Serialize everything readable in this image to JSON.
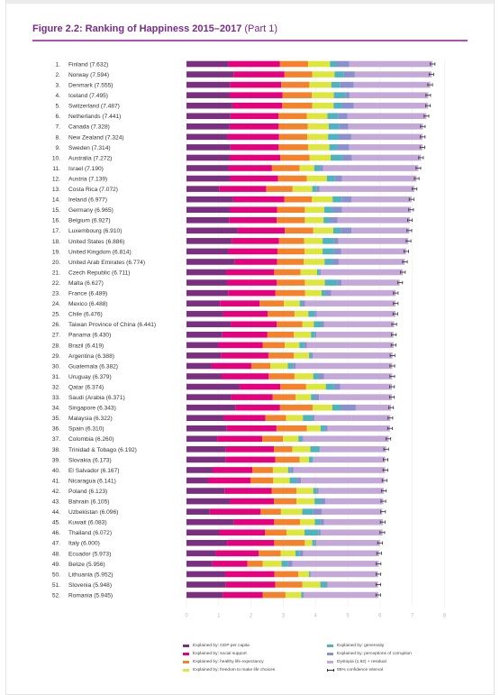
{
  "figure": {
    "title_bold": "Figure 2.2: Ranking of Happiness 2015–2017",
    "title_part": "(Part 1)"
  },
  "colors": {
    "gdp": "#7b2f80",
    "social": "#e6007e",
    "health": "#f5822a",
    "freedom": "#dde63a",
    "generosity": "#4fb3bf",
    "corruption": "#8b8fce",
    "dystopia": "#c4a8d8",
    "ci": "#333333"
  },
  "legend": [
    {
      "key": "gdp",
      "label": "Explained by: GDP per capita"
    },
    {
      "key": "social",
      "label": "Explained by: social support"
    },
    {
      "key": "health",
      "label": "Explained by: healthy life expectancy"
    },
    {
      "key": "freedom",
      "label": "Explained by: freedom to make life choices"
    },
    {
      "key": "generosity",
      "label": "Explained by: generosity"
    },
    {
      "key": "corruption",
      "label": "Explained by: perceptions of corruption"
    },
    {
      "key": "dystopia",
      "label": "Dystopia (1.92) + residual"
    },
    {
      "key": "ci",
      "label": "95% confidence interval"
    }
  ],
  "chart_data": {
    "type": "bar",
    "orientation": "horizontal",
    "stacked": true,
    "xlim": [
      0,
      8
    ],
    "x_ticks": [
      "0",
      "1",
      "2",
      "3",
      "4",
      "5",
      "6",
      "7",
      "8"
    ],
    "series_names": [
      "GDP per capita",
      "social support",
      "healthy life expectancy",
      "freedom to make life choices",
      "generosity",
      "perceptions of corruption",
      "Dystopia (1.92) + residual"
    ],
    "rows": [
      {
        "rank": "1.",
        "label": "Finland (7.632)",
        "score": 7.632,
        "parts": [
          1.31,
          1.59,
          0.87,
          0.68,
          0.2,
          0.39,
          2.59
        ]
      },
      {
        "rank": "2.",
        "label": "Norway (7.594)",
        "score": 7.594,
        "parts": [
          1.46,
          1.58,
          0.86,
          0.69,
          0.29,
          0.34,
          2.38
        ]
      },
      {
        "rank": "3.",
        "label": "Denmark (7.555)",
        "score": 7.555,
        "parts": [
          1.35,
          1.59,
          0.87,
          0.68,
          0.28,
          0.41,
          2.38
        ]
      },
      {
        "rank": "4.",
        "label": "Iceland (7.495)",
        "score": 7.495,
        "parts": [
          1.34,
          1.64,
          0.91,
          0.68,
          0.35,
          0.14,
          2.44
        ]
      },
      {
        "rank": "5.",
        "label": "Switzerland (7.487)",
        "score": 7.487,
        "parts": [
          1.42,
          1.55,
          0.93,
          0.66,
          0.26,
          0.36,
          2.31
        ]
      },
      {
        "rank": "6.",
        "label": "Netherlands (7.441)",
        "score": 7.441,
        "parts": [
          1.36,
          1.49,
          0.88,
          0.64,
          0.33,
          0.29,
          2.45
        ]
      },
      {
        "rank": "7.",
        "label": "Canada (7.328)",
        "score": 7.328,
        "parts": [
          1.33,
          1.53,
          0.9,
          0.65,
          0.32,
          0.29,
          2.31
        ]
      },
      {
        "rank": "8.",
        "label": "New Zealand (7.324)",
        "score": 7.324,
        "parts": [
          1.27,
          1.6,
          0.88,
          0.64,
          0.33,
          0.39,
          2.21
        ]
      },
      {
        "rank": "9.",
        "label": "Sweden (7.314)",
        "score": 7.314,
        "parts": [
          1.36,
          1.5,
          0.91,
          0.66,
          0.25,
          0.36,
          2.28
        ]
      },
      {
        "rank": "10.",
        "label": "Australia (7.272)",
        "score": 7.272,
        "parts": [
          1.34,
          1.57,
          0.91,
          0.65,
          0.36,
          0.3,
          2.14
        ]
      },
      {
        "rank": "11.",
        "label": "Israel (7.190)",
        "score": 7.19,
        "parts": [
          1.3,
          1.35,
          0.86,
          0.45,
          0.19,
          0.08,
          2.96
        ]
      },
      {
        "rank": "12.",
        "label": "Austria (7.139)",
        "score": 7.139,
        "parts": [
          1.34,
          1.5,
          0.89,
          0.62,
          0.24,
          0.23,
          2.31
        ]
      },
      {
        "rank": "13.",
        "label": "Costa Rica (7.072)",
        "score": 7.072,
        "parts": [
          1.01,
          1.46,
          0.82,
          0.61,
          0.14,
          0.08,
          2.95
        ]
      },
      {
        "rank": "14.",
        "label": "Ireland (6.977)",
        "score": 6.977,
        "parts": [
          1.45,
          1.58,
          0.86,
          0.64,
          0.28,
          0.31,
          1.86
        ]
      },
      {
        "rank": "15.",
        "label": "Germany (6.965)",
        "score": 6.965,
        "parts": [
          1.34,
          1.47,
          0.86,
          0.6,
          0.27,
          0.28,
          2.14
        ]
      },
      {
        "rank": "16.",
        "label": "Belgium (6.927)",
        "score": 6.927,
        "parts": [
          1.32,
          1.48,
          0.87,
          0.58,
          0.19,
          0.24,
          2.25
        ]
      },
      {
        "rank": "17.",
        "label": "Luxembourg (6.910)",
        "score": 6.91,
        "parts": [
          1.58,
          1.47,
          0.88,
          0.62,
          0.23,
          0.34,
          1.79
        ]
      },
      {
        "rank": "18.",
        "label": "United States (6.886)",
        "score": 6.886,
        "parts": [
          1.4,
          1.47,
          0.78,
          0.57,
          0.34,
          0.15,
          2.17
        ]
      },
      {
        "rank": "19.",
        "label": "United Kingdom (6.814)",
        "score": 6.814,
        "parts": [
          1.3,
          1.52,
          0.84,
          0.56,
          0.35,
          0.23,
          2.01
        ]
      },
      {
        "rank": "20.",
        "label": "United Arab Emirates (6.774)",
        "score": 6.774,
        "parts": [
          1.5,
          1.31,
          0.83,
          0.64,
          0.26,
          0.18,
          2.05
        ]
      },
      {
        "rank": "21.",
        "label": "Czech Republic (6.711)",
        "score": 6.711,
        "parts": [
          1.23,
          1.49,
          0.82,
          0.51,
          0.08,
          0.04,
          2.54
        ]
      },
      {
        "rank": "22.",
        "label": "Malta (6.627)",
        "score": 6.627,
        "parts": [
          1.27,
          1.53,
          0.87,
          0.62,
          0.38,
          0.14,
          1.8
        ]
      },
      {
        "rank": "23.",
        "label": "France (6.489)",
        "score": 6.489,
        "parts": [
          1.29,
          1.47,
          0.92,
          0.51,
          0.11,
          0.19,
          2.0
        ]
      },
      {
        "rank": "24.",
        "label": "Mexico (6.488)",
        "score": 6.488,
        "parts": [
          1.04,
          1.23,
          0.75,
          0.49,
          0.08,
          0.09,
          2.8
        ]
      },
      {
        "rank": "25.",
        "label": "Chile (6.476)",
        "score": 6.476,
        "parts": [
          1.13,
          1.39,
          0.83,
          0.43,
          0.19,
          0.07,
          2.44
        ]
      },
      {
        "rank": "26.",
        "label": "Taiwan Province of China (6.441)",
        "score": 6.441,
        "parts": [
          1.37,
          1.43,
          0.79,
          0.36,
          0.24,
          0.07,
          2.18
        ]
      },
      {
        "rank": "27.",
        "label": "Panama (6.430)",
        "score": 6.43,
        "parts": [
          1.11,
          1.4,
          0.82,
          0.53,
          0.13,
          0.04,
          2.39
        ]
      },
      {
        "rank": "28.",
        "label": "Brazil (6.419)",
        "score": 6.419,
        "parts": [
          0.99,
          1.37,
          0.69,
          0.45,
          0.15,
          0.08,
          2.69
        ]
      },
      {
        "rank": "29.",
        "label": "Argentina (6.388)",
        "score": 6.388,
        "parts": [
          1.07,
          1.47,
          0.79,
          0.47,
          0.07,
          0.05,
          2.47
        ]
      },
      {
        "rank": "30.",
        "label": "Guatemala (6.382)",
        "score": 6.382,
        "parts": [
          0.78,
          1.23,
          0.59,
          0.54,
          0.16,
          0.09,
          2.99
        ]
      },
      {
        "rank": "31.",
        "label": "Uruguay (6.379)",
        "score": 6.379,
        "parts": [
          1.09,
          1.46,
          0.8,
          0.58,
          0.16,
          0.17,
          2.12
        ]
      },
      {
        "rank": "32.",
        "label": "Qatar (6.374)",
        "score": 6.374,
        "parts": [
          1.65,
          1.26,
          0.8,
          0.61,
          0.25,
          0.2,
          1.6
        ]
      },
      {
        "rank": "33.",
        "label": "Saudi (Arabia (6.371)",
        "score": 6.371,
        "parts": [
          1.38,
          1.29,
          0.71,
          0.48,
          0.12,
          0.13,
          2.26
        ]
      },
      {
        "rank": "34.",
        "label": "Singapore (6.343)",
        "score": 6.343,
        "parts": [
          1.53,
          1.37,
          1.01,
          0.61,
          0.27,
          0.46,
          1.09
        ]
      },
      {
        "rank": "35.",
        "label": "Malaysia (6.322)",
        "score": 6.322,
        "parts": [
          1.16,
          1.29,
          0.64,
          0.52,
          0.3,
          0.06,
          2.35
        ]
      },
      {
        "rank": "36.",
        "label": "Spain (6.310)",
        "score": 6.31,
        "parts": [
          1.25,
          1.54,
          0.94,
          0.43,
          0.14,
          0.07,
          1.94
        ]
      },
      {
        "rank": "37.",
        "label": "Colombia (6.260)",
        "score": 6.26,
        "parts": [
          0.96,
          1.39,
          0.64,
          0.48,
          0.11,
          0.04,
          2.65
        ]
      },
      {
        "rank": "38.",
        "label": "Trinidad & Tobago (6.192)",
        "score": 6.192,
        "parts": [
          1.22,
          1.49,
          0.57,
          0.56,
          0.28,
          0.01,
          2.06
        ]
      },
      {
        "rank": "39.",
        "label": "Slovakia (6.173)",
        "score": 6.173,
        "parts": [
          1.21,
          1.54,
          0.76,
          0.29,
          0.12,
          0.01,
          2.23
        ]
      },
      {
        "rank": "40.",
        "label": "El Salvador (6.167)",
        "score": 6.167,
        "parts": [
          0.81,
          1.23,
          0.64,
          0.47,
          0.07,
          0.1,
          2.84
        ]
      },
      {
        "rank": "41.",
        "label": "Nicaragua (6.141)",
        "score": 6.141,
        "parts": [
          0.67,
          1.32,
          0.7,
          0.51,
          0.21,
          0.14,
          2.58
        ]
      },
      {
        "rank": "42.",
        "label": "Poland (6.123)",
        "score": 6.123,
        "parts": [
          1.18,
          1.46,
          0.77,
          0.52,
          0.11,
          0.06,
          2.02
        ]
      },
      {
        "rank": "43.",
        "label": "Bahrain (6.105)",
        "score": 6.105,
        "parts": [
          1.34,
          1.37,
          0.7,
          0.56,
          0.22,
          0.12,
          1.79
        ]
      },
      {
        "rank": "44.",
        "label": "Uzbekistan (6.096)",
        "score": 6.096,
        "parts": [
          0.72,
          1.58,
          0.63,
          0.66,
          0.34,
          0.26,
          1.88
        ]
      },
      {
        "rank": "45.",
        "label": "Kuwait (6.083)",
        "score": 6.083,
        "parts": [
          1.47,
          1.25,
          0.8,
          0.46,
          0.17,
          0.12,
          1.82
        ]
      },
      {
        "rank": "46.",
        "label": "Thailand (6.072)",
        "score": 6.072,
        "parts": [
          1.02,
          1.42,
          0.66,
          0.56,
          0.44,
          0.06,
          1.92
        ]
      },
      {
        "rank": "47.",
        "label": "Italy (6.000)",
        "score": 6.0,
        "parts": [
          1.26,
          1.46,
          0.95,
          0.23,
          0.09,
          0.04,
          1.97
        ]
      },
      {
        "rank": "48.",
        "label": "Ecuador (5.973)",
        "score": 5.973,
        "parts": [
          0.91,
          1.33,
          0.68,
          0.46,
          0.13,
          0.11,
          2.35
        ]
      },
      {
        "rank": "49.",
        "label": "Belize (5.956)",
        "score": 5.956,
        "parts": [
          0.8,
          1.09,
          0.47,
          0.59,
          0.2,
          0.14,
          2.67
        ]
      },
      {
        "rank": "50.",
        "label": "Lithuania (5.952)",
        "score": 5.952,
        "parts": [
          1.2,
          1.53,
          0.74,
          0.33,
          0.04,
          0.01,
          2.09
        ]
      },
      {
        "rank": "51.",
        "label": "Slovenia (5.948)",
        "score": 5.948,
        "parts": [
          1.22,
          1.53,
          0.84,
          0.56,
          0.18,
          0.05,
          1.56
        ]
      },
      {
        "rank": "52.",
        "label": "Romania (5.945)",
        "score": 5.945,
        "parts": [
          1.12,
          1.24,
          0.71,
          0.49,
          0.07,
          0.0,
          2.32
        ]
      }
    ]
  }
}
